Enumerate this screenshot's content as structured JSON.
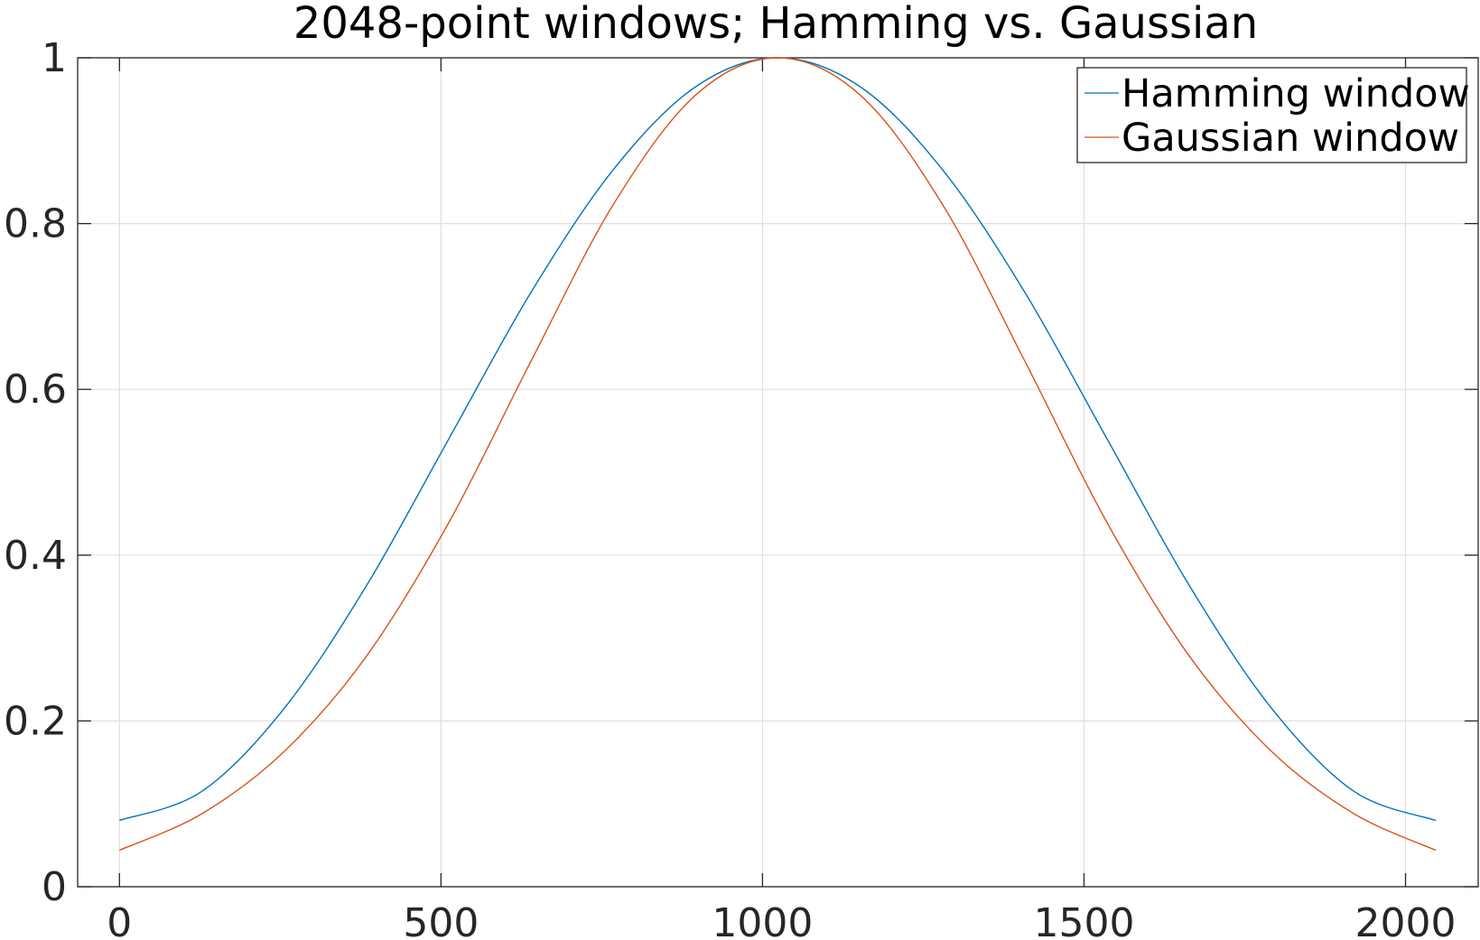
{
  "chart_data": {
    "type": "line",
    "title": "2048-point windows; Hamming vs. Gaussian",
    "xlabel": "",
    "ylabel": "",
    "xlim": [
      -65,
      2113
    ],
    "ylim": [
      0,
      1
    ],
    "x_ticks": [
      0,
      500,
      1000,
      1500,
      2000
    ],
    "x_tick_labels": [
      "0",
      "500",
      "1000",
      "1500",
      "2000"
    ],
    "y_ticks": [
      0,
      0.2,
      0.4,
      0.6,
      0.8,
      1
    ],
    "y_tick_labels": [
      "0",
      "0.2",
      "0.4",
      "0.6",
      "0.8",
      "1"
    ],
    "grid": true,
    "legend": "top-right",
    "x": [
      0,
      128,
      256,
      384,
      512,
      640,
      768,
      896,
      1023.5,
      1152,
      1280,
      1408,
      1536,
      1664,
      1792,
      1920,
      2047
    ],
    "series": [
      {
        "name": "Hamming window",
        "color": "#0072BD",
        "values": [
          0.08,
          0.115,
          0.215,
          0.363,
          0.54,
          0.717,
          0.865,
          0.965,
          1.0,
          0.965,
          0.865,
          0.717,
          0.54,
          0.363,
          0.215,
          0.115,
          0.08
        ]
      },
      {
        "name": "Gaussian window",
        "color": "#D95319",
        "values": [
          0.044,
          0.088,
          0.163,
          0.278,
          0.439,
          0.634,
          0.823,
          0.955,
          1.0,
          0.955,
          0.823,
          0.634,
          0.439,
          0.278,
          0.163,
          0.088,
          0.044
        ]
      }
    ]
  }
}
